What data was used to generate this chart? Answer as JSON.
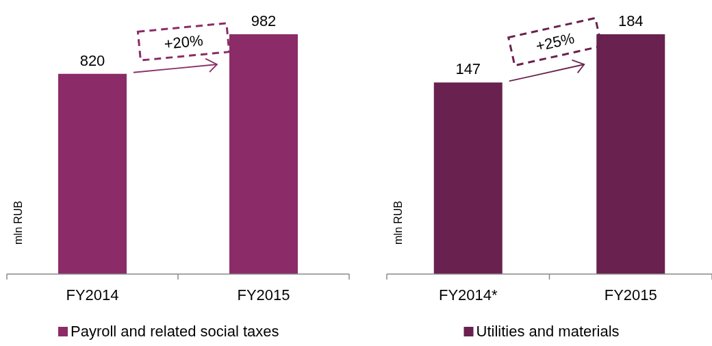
{
  "chart_data": [
    {
      "type": "bar",
      "categories": [
        "FY2014",
        "FY2015"
      ],
      "ylabel": "mln RUB",
      "data_labels": true,
      "legend": "bottom",
      "annotations": [
        "+20%"
      ],
      "series": [
        {
          "name": "Payroll and related social taxes",
          "color": "#8b2c68",
          "values": [
            820,
            982
          ]
        }
      ]
    },
    {
      "type": "bar",
      "categories": [
        "FY2014*",
        "FY2015"
      ],
      "ylabel": "mln RUB",
      "data_labels": true,
      "legend": "bottom",
      "annotations": [
        "+25%"
      ],
      "series": [
        {
          "name": "Utilities and materials",
          "color": "#69214f",
          "values": [
            147,
            184
          ]
        }
      ]
    }
  ]
}
